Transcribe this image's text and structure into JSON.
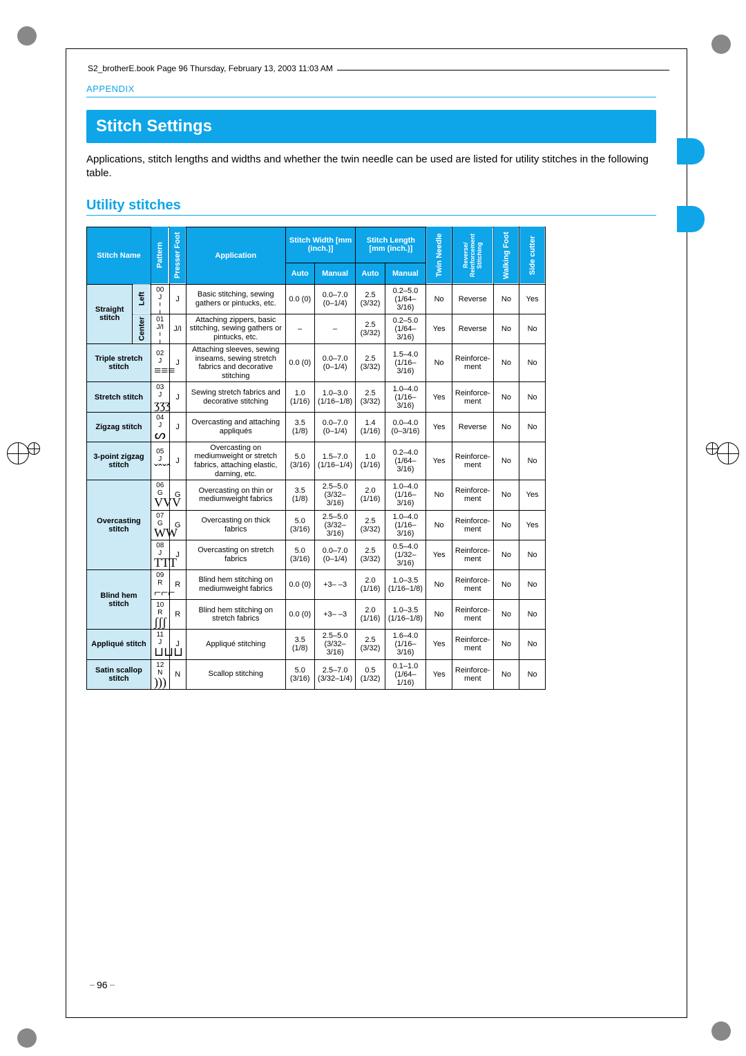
{
  "header_note": "S2_brotherE.book  Page 96  Thursday, February 13, 2003  11:03 AM",
  "section_label": "APPENDIX",
  "title": "Stitch Settings",
  "intro": "Applications, stitch lengths and widths and whether the twin needle can be used are listed for utility stitches in the following table.",
  "subtitle": "Utility stitches",
  "page_number": "96",
  "headers": {
    "stitch_name": "Stitch Name",
    "pattern": "Pattern",
    "presser_foot": "Presser Foot",
    "application": "Application",
    "stitch_width": "Stitch Width [mm (inch.)]",
    "stitch_length": "Stitch Length [mm (inch.)]",
    "auto": "Auto",
    "manual": "Manual",
    "twin_needle": "Twin Needle",
    "reverse": "Reverse/ Reinforcement Stitching",
    "walking_foot": "Walking Foot",
    "side_cutter": "Side cutter"
  },
  "stitch_groups": {
    "straight": "Straight stitch",
    "straight_left": "Left",
    "straight_center": "Center"
  },
  "rows": [
    {
      "name": "",
      "pat_num": "00",
      "pat_let": "J",
      "pat_sym": "¦",
      "foot": "J",
      "app": "Basic stitching, sewing gathers or pintucks, etc.",
      "wa": "0.0 (0)",
      "wm": "0.0–7.0 (0–1/4)",
      "la": "2.5 (3/32)",
      "lm": "0.2–5.0 (1/64–3/16)",
      "twin": "No",
      "rev": "Reverse",
      "walk": "No",
      "side": "Yes"
    },
    {
      "name": "",
      "pat_num": "01",
      "pat_let": "J/I",
      "pat_sym": "¦",
      "foot": "J/I",
      "app": "Attaching zippers, basic stitching, sewing gathers or pintucks, etc.",
      "wa": "–",
      "wm": "–",
      "la": "2.5 (3/32)",
      "lm": "0.2–5.0 (1/64–3/16)",
      "twin": "Yes",
      "rev": "Reverse",
      "walk": "No",
      "side": "No"
    },
    {
      "name": "Triple stretch stitch",
      "pat_num": "02",
      "pat_let": "J",
      "pat_sym": "≡≡≡",
      "foot": "J",
      "app": "Attaching sleeves, sewing inseams, sewing stretch fabrics and decorative stitching",
      "wa": "0.0 (0)",
      "wm": "0.0–7.0 (0–1/4)",
      "la": "2.5 (3/32)",
      "lm": "1.5–4.0 (1/16–3/16)",
      "twin": "No",
      "rev": "Reinforce-ment",
      "walk": "No",
      "side": "No"
    },
    {
      "name": "Stretch stitch",
      "pat_num": "03",
      "pat_let": "J",
      "pat_sym": "ʒʒʒ",
      "foot": "J",
      "app": "Sewing stretch fabrics and decorative stitching",
      "wa": "1.0 (1/16)",
      "wm": "1.0–3.0 (1/16–1/8)",
      "la": "2.5 (3/32)",
      "lm": "1.0–4.0 (1/16–3/16)",
      "twin": "Yes",
      "rev": "Reinforce-ment",
      "walk": "No",
      "side": "No"
    },
    {
      "name": "Zigzag stitch",
      "pat_num": "04",
      "pat_let": "J",
      "pat_sym": "ᔕ",
      "foot": "J",
      "app": "Overcasting and attaching appliqués",
      "wa": "3.5 (1/8)",
      "wm": "0.0–7.0 (0–1/4)",
      "la": "1.4 (1/16)",
      "lm": "0.0–4.0 (0–3/16)",
      "twin": "Yes",
      "rev": "Reverse",
      "walk": "No",
      "side": "No"
    },
    {
      "name": "3-point zigzag stitch",
      "pat_num": "05",
      "pat_let": "J",
      "pat_sym": "ˇˆˇˆ",
      "foot": "J",
      "app": "Overcasting on mediumweight or stretch fabrics, attaching elastic, darning, etc.",
      "wa": "5.0 (3/16)",
      "wm": "1.5–7.0 (1/16–1/4)",
      "la": "1.0 (1/16)",
      "lm": "0.2–4.0 (1/64–3/16)",
      "twin": "Yes",
      "rev": "Reinforce-ment",
      "walk": "No",
      "side": "No"
    },
    {
      "name": "Overcasting stitch",
      "pat_num": "06",
      "pat_let": "G",
      "pat_sym": "VVV",
      "foot": "G",
      "app": "Overcasting on thin or mediumweight fabrics",
      "wa": "3.5 (1/8)",
      "wm": "2.5–5.0 (3/32–3/16)",
      "la": "2.0 (1/16)",
      "lm": "1.0–4.0 (1/16–3/16)",
      "twin": "No",
      "rev": "Reinforce-ment",
      "walk": "No",
      "side": "Yes"
    },
    {
      "name": "",
      "pat_num": "07",
      "pat_let": "G",
      "pat_sym": "WW",
      "foot": "G",
      "app": "Overcasting on thick fabrics",
      "wa": "5.0 (3/16)",
      "wm": "2.5–5.0 (3/32–3/16)",
      "la": "2.5 (3/32)",
      "lm": "1.0–4.0 (1/16–3/16)",
      "twin": "No",
      "rev": "Reinforce-ment",
      "walk": "No",
      "side": "Yes"
    },
    {
      "name": "",
      "pat_num": "08",
      "pat_let": "J",
      "pat_sym": "TTT",
      "foot": "J",
      "app": "Overcasting on stretch fabrics",
      "wa": "5.0 (3/16)",
      "wm": "0.0–7.0 (0–1/4)",
      "la": "2.5 (3/32)",
      "lm": "0.5–4.0 (1/32–3/16)",
      "twin": "Yes",
      "rev": "Reinforce-ment",
      "walk": "No",
      "side": "No"
    },
    {
      "name": "Blind hem stitch",
      "pat_num": "09",
      "pat_let": "R",
      "pat_sym": "⌐⌐⌐",
      "foot": "R",
      "app": "Blind hem stitching on mediumweight fabrics",
      "wa": "0.0 (0)",
      "wm": "+3– –3",
      "la": "2.0 (1/16)",
      "lm": "1.0–3.5 (1/16–1/8)",
      "twin": "No",
      "rev": "Reinforce-ment",
      "walk": "No",
      "side": "No"
    },
    {
      "name": "",
      "pat_num": "10",
      "pat_let": "R",
      "pat_sym": "ʃʃʃ",
      "foot": "R",
      "app": "Blind hem stitching on stretch fabrics",
      "wa": "0.0 (0)",
      "wm": "+3– –3",
      "la": "2.0 (1/16)",
      "lm": "1.0–3.5 (1/16–1/8)",
      "twin": "No",
      "rev": "Reinforce-ment",
      "walk": "No",
      "side": "No"
    },
    {
      "name": "Appliqué stitch",
      "pat_num": "11",
      "pat_let": "J",
      "pat_sym": "⊔⊔⊔",
      "foot": "J",
      "app": "Appliqué stitching",
      "wa": "3.5 (1/8)",
      "wm": "2.5–5.0 (3/32–3/16)",
      "la": "2.5 (3/32)",
      "lm": "1.6–4.0 (1/16–3/16)",
      "twin": "Yes",
      "rev": "Reinforce-ment",
      "walk": "No",
      "side": "No"
    },
    {
      "name": "Satin scallop stitch",
      "pat_num": "12",
      "pat_let": "N",
      "pat_sym": ")))",
      "foot": "N",
      "app": "Scallop stitching",
      "wa": "5.0 (3/16)",
      "wm": "2.5–7.0 (3/32–1/4)",
      "la": "0.5 (1/32)",
      "lm": "0.1–1.0 (1/64–1/16)",
      "twin": "Yes",
      "rev": "Reinforce-ment",
      "walk": "No",
      "side": "No"
    }
  ],
  "colors": {
    "accent": "#0ea5e9",
    "row_bg": "#cce9f6"
  }
}
